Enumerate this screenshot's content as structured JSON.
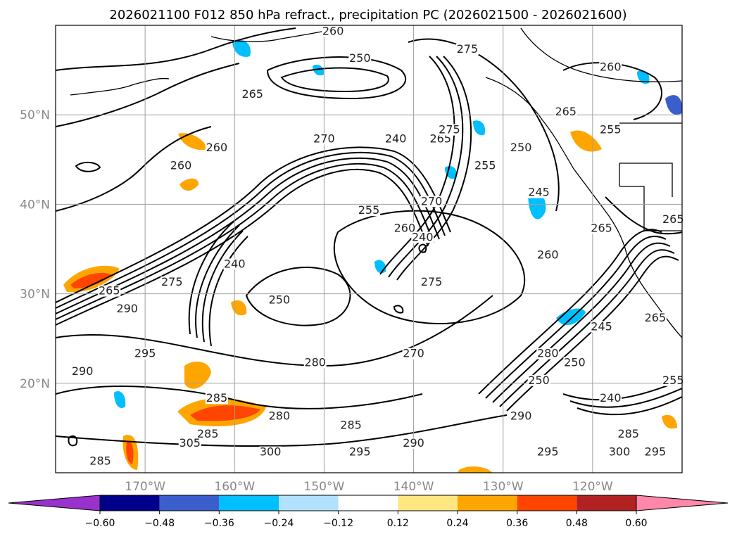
{
  "chart_data": {
    "type": "contour-map",
    "title": "2026021100 F012 850 hPa refract., precipitation PC (2026021500 - 2026021600)",
    "projection": "PlateCarree",
    "xlim": [
      -180,
      -110
    ],
    "ylim": [
      10,
      60
    ],
    "grid": true,
    "legend": "bottom",
    "x_ticks": [
      {
        "value": -170,
        "label": "170°W"
      },
      {
        "value": -160,
        "label": "160°W"
      },
      {
        "value": -150,
        "label": "150°W"
      },
      {
        "value": -140,
        "label": "140°W"
      },
      {
        "value": -130,
        "label": "130°W"
      },
      {
        "value": -120,
        "label": "120°W"
      }
    ],
    "y_ticks": [
      {
        "value": 20,
        "label": "20°N"
      },
      {
        "value": 30,
        "label": "30°N"
      },
      {
        "value": 40,
        "label": "40°N"
      },
      {
        "value": 50,
        "label": "50°N"
      }
    ],
    "colorbar": {
      "levels": [
        -0.6,
        -0.48,
        -0.36,
        -0.24,
        -0.12,
        0.12,
        0.24,
        0.36,
        0.48,
        0.6
      ],
      "tick_labels": [
        "−0.60",
        "−0.48",
        "−0.36",
        "−0.24",
        "−0.12",
        "0.12",
        "0.24",
        "0.36",
        "0.48",
        "0.60"
      ],
      "colors": [
        "#9932cc",
        "#00008b",
        "#3a5fcd",
        "#00bfff",
        "#b0e2ff",
        "#ffffff",
        "#ffe680",
        "#ffa500",
        "#ff4500",
        "#b22222",
        "#ff88aa"
      ],
      "extend": "both"
    },
    "contour_labels": [
      {
        "lon": -177,
        "lat": 21,
        "text": "290"
      },
      {
        "lon": -174,
        "lat": 30,
        "text": "265"
      },
      {
        "lon": -172,
        "lat": 28,
        "text": "290"
      },
      {
        "lon": -170,
        "lat": 23,
        "text": "295"
      },
      {
        "lon": -167,
        "lat": 31,
        "text": "275"
      },
      {
        "lon": -160,
        "lat": 33,
        "text": "240"
      },
      {
        "lon": -155,
        "lat": 29,
        "text": "250"
      },
      {
        "lon": -162,
        "lat": 46,
        "text": "260"
      },
      {
        "lon": -166,
        "lat": 44,
        "text": "260"
      },
      {
        "lon": -158,
        "lat": 52,
        "text": "265"
      },
      {
        "lon": -150,
        "lat": 47,
        "text": "270"
      },
      {
        "lon": -149,
        "lat": 59,
        "text": "260"
      },
      {
        "lon": -146,
        "lat": 56,
        "text": "250"
      },
      {
        "lon": -142,
        "lat": 47,
        "text": "240"
      },
      {
        "lon": -145,
        "lat": 39,
        "text": "255"
      },
      {
        "lon": -141,
        "lat": 37,
        "text": "260"
      },
      {
        "lon": -139,
        "lat": 36,
        "text": "240"
      },
      {
        "lon": -138,
        "lat": 40,
        "text": "270"
      },
      {
        "lon": -138,
        "lat": 31,
        "text": "275"
      },
      {
        "lon": -137,
        "lat": 47,
        "text": "265"
      },
      {
        "lon": -136,
        "lat": 48,
        "text": "275"
      },
      {
        "lon": -134,
        "lat": 57,
        "text": "275"
      },
      {
        "lon": -132,
        "lat": 44,
        "text": "255"
      },
      {
        "lon": -128,
        "lat": 46,
        "text": "250"
      },
      {
        "lon": -126,
        "lat": 41,
        "text": "245"
      },
      {
        "lon": -125,
        "lat": 34,
        "text": "260"
      },
      {
        "lon": -123,
        "lat": 50,
        "text": "265"
      },
      {
        "lon": -118,
        "lat": 48,
        "text": "255"
      },
      {
        "lon": -118,
        "lat": 55,
        "text": "260"
      },
      {
        "lon": -125,
        "lat": 23,
        "text": "280"
      },
      {
        "lon": -151,
        "lat": 22,
        "text": "280"
      },
      {
        "lon": -147,
        "lat": 15,
        "text": "285"
      },
      {
        "lon": -155,
        "lat": 16,
        "text": "280"
      },
      {
        "lon": -140,
        "lat": 23,
        "text": "270"
      },
      {
        "lon": -126,
        "lat": 20,
        "text": "250"
      },
      {
        "lon": -122,
        "lat": 22,
        "text": "250"
      },
      {
        "lon": -118,
        "lat": 18,
        "text": "240"
      },
      {
        "lon": -128,
        "lat": 16,
        "text": "290"
      },
      {
        "lon": -125,
        "lat": 12,
        "text": "295"
      },
      {
        "lon": -116,
        "lat": 14,
        "text": "285"
      },
      {
        "lon": -117,
        "lat": 12,
        "text": "300"
      },
      {
        "lon": -113,
        "lat": 12,
        "text": "295"
      },
      {
        "lon": -140,
        "lat": 13,
        "text": "290"
      },
      {
        "lon": -146,
        "lat": 12,
        "text": "295"
      },
      {
        "lon": -156,
        "lat": 12,
        "text": "300"
      },
      {
        "lon": -163,
        "lat": 14,
        "text": "285"
      },
      {
        "lon": -165,
        "lat": 13,
        "text": "305"
      },
      {
        "lon": -175,
        "lat": 11,
        "text": "285"
      },
      {
        "lon": -162,
        "lat": 18,
        "text": "285"
      },
      {
        "lon": -119,
        "lat": 26,
        "text": "245"
      },
      {
        "lon": -113,
        "lat": 27,
        "text": "265"
      },
      {
        "lon": -111,
        "lat": 20,
        "text": "255"
      },
      {
        "lon": -111,
        "lat": 38,
        "text": "265"
      },
      {
        "lon": -119,
        "lat": 37,
        "text": "265"
      }
    ]
  }
}
